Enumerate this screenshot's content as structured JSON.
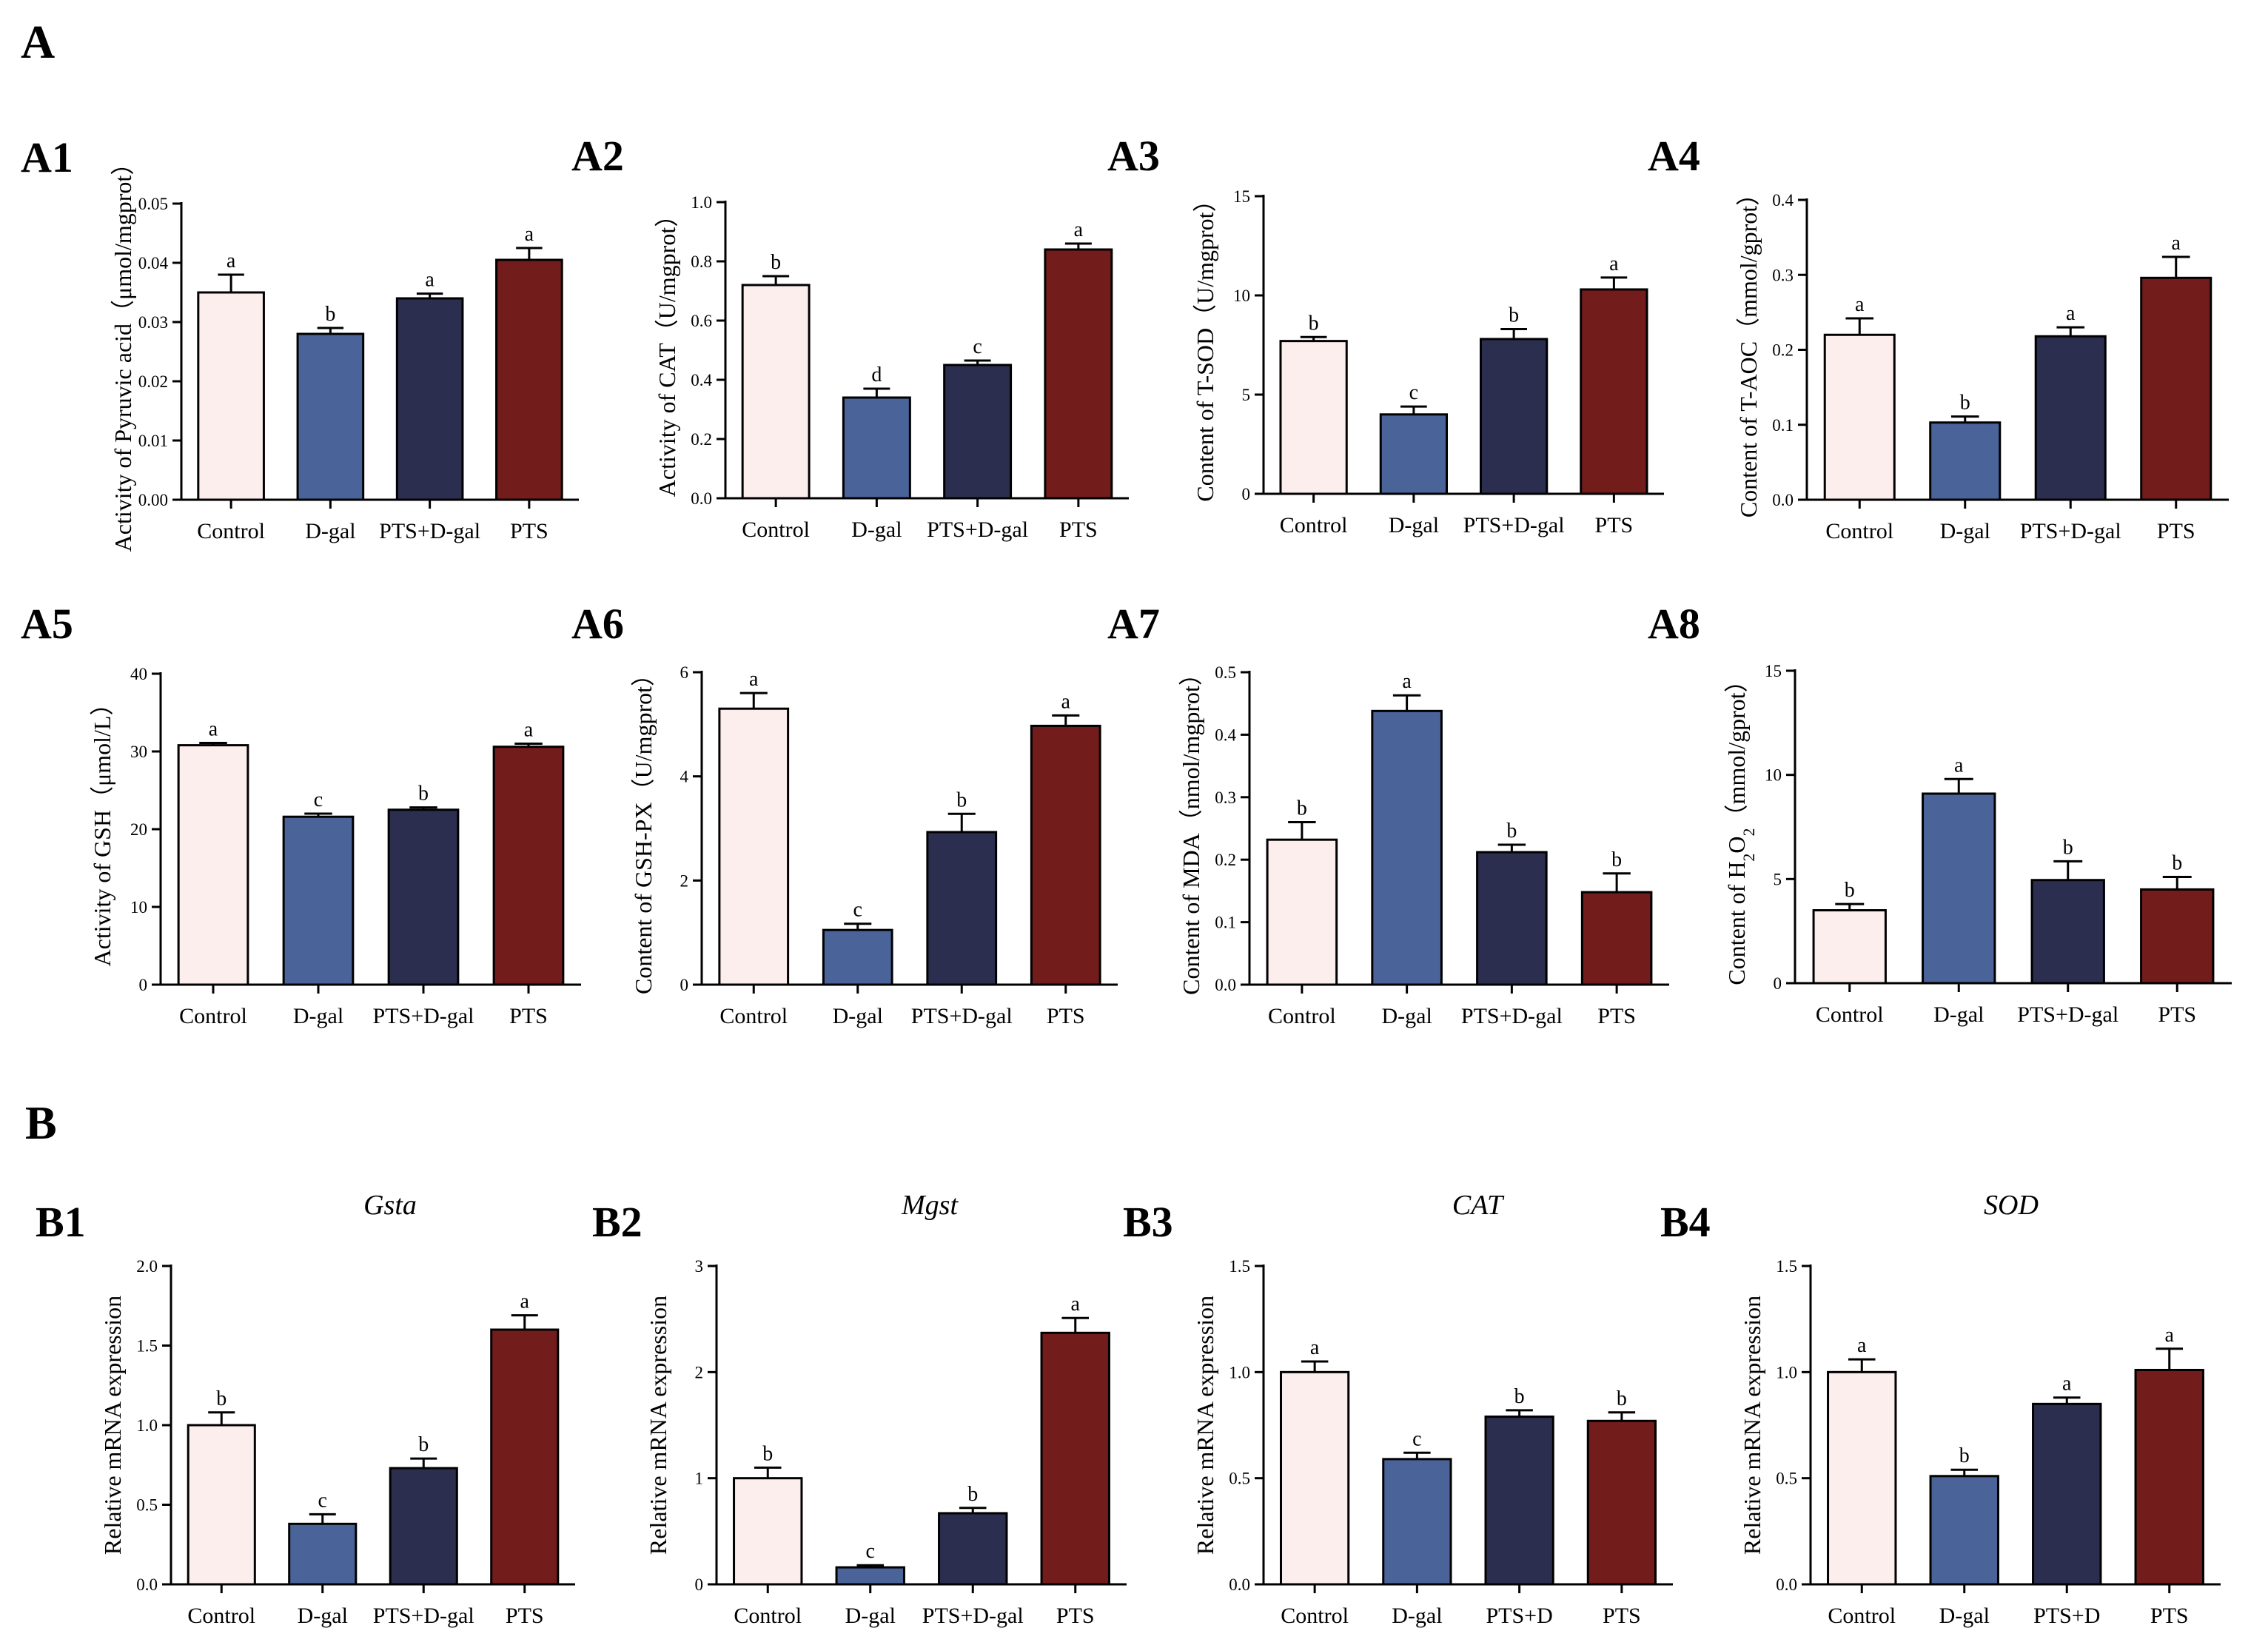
{
  "sections": [
    "A",
    "B"
  ],
  "colors": {
    "Control": "#fdeeee",
    "D-gal": "#4a6499",
    "PTS+D-gal": "#2c2e4f",
    "PTS": "#731c1c"
  },
  "chart_data": [
    {
      "id": "A1",
      "type": "bar",
      "title": "",
      "ylabel": "Activity of Pyruvic acid（μmol/mgprot）",
      "xlabel": "",
      "categories": [
        "Control",
        "D-gal",
        "PTS+D-gal",
        "PTS"
      ],
      "values": [
        0.035,
        0.028,
        0.034,
        0.0405
      ],
      "errors": [
        0.003,
        0.001,
        0.0008,
        0.002
      ],
      "letters": [
        "a",
        "b",
        "a",
        "a"
      ],
      "ylim": [
        0,
        0.05
      ],
      "yticks": [
        "0.00",
        "0.01",
        "0.02",
        "0.03",
        "0.04",
        "0.05"
      ]
    },
    {
      "id": "A2",
      "type": "bar",
      "title": "",
      "ylabel": "Activity of CAT（U/mgprot）",
      "xlabel": "",
      "categories": [
        "Control",
        "D-gal",
        "PTS+D-gal",
        "PTS"
      ],
      "values": [
        0.72,
        0.34,
        0.45,
        0.84
      ],
      "errors": [
        0.03,
        0.03,
        0.015,
        0.02
      ],
      "letters": [
        "b",
        "d",
        "c",
        "a"
      ],
      "ylim": [
        0,
        1.0
      ],
      "yticks": [
        "0.0",
        "0.2",
        "0.4",
        "0.6",
        "0.8",
        "1.0"
      ]
    },
    {
      "id": "A3",
      "type": "bar",
      "title": "",
      "ylabel": "Content of T-SOD（U/mgprot）",
      "xlabel": "",
      "categories": [
        "Control",
        "D-gal",
        "PTS+D-gal",
        "PTS"
      ],
      "values": [
        7.7,
        4.0,
        7.8,
        10.3
      ],
      "errors": [
        0.2,
        0.4,
        0.5,
        0.6
      ],
      "letters": [
        "b",
        "c",
        "b",
        "a"
      ],
      "ylim": [
        0,
        15
      ],
      "yticks": [
        "0",
        "5",
        "10",
        "15"
      ]
    },
    {
      "id": "A4",
      "type": "bar",
      "title": "",
      "ylabel": "Content of T-AOC（mmol/gprot）",
      "xlabel": "",
      "categories": [
        "Control",
        "D-gal",
        "PTS+D-gal",
        "PTS"
      ],
      "values": [
        0.22,
        0.103,
        0.218,
        0.296
      ],
      "errors": [
        0.022,
        0.008,
        0.012,
        0.028
      ],
      "letters": [
        "a",
        "b",
        "a",
        "a"
      ],
      "ylim": [
        0,
        0.4
      ],
      "yticks": [
        "0.0",
        "0.1",
        "0.2",
        "0.3",
        "0.4"
      ]
    },
    {
      "id": "A5",
      "type": "bar",
      "title": "",
      "ylabel": "Activity of GSH（μmol/L）",
      "xlabel": "",
      "categories": [
        "Control",
        "D-gal",
        "PTS+D-gal",
        "PTS"
      ],
      "values": [
        30.8,
        21.6,
        22.5,
        30.6
      ],
      "errors": [
        0.3,
        0.4,
        0.3,
        0.4
      ],
      "letters": [
        "a",
        "c",
        "b",
        "a"
      ],
      "ylim": [
        0,
        40
      ],
      "yticks": [
        "0",
        "10",
        "20",
        "30",
        "40"
      ]
    },
    {
      "id": "A6",
      "type": "bar",
      "title": "",
      "ylabel": "Content of GSH-PX（U/mgprot）",
      "xlabel": "",
      "categories": [
        "Control",
        "D-gal",
        "PTS+D-gal",
        "PTS"
      ],
      "values": [
        5.3,
        1.05,
        2.93,
        4.97
      ],
      "errors": [
        0.3,
        0.12,
        0.35,
        0.2
      ],
      "letters": [
        "a",
        "c",
        "b",
        "a"
      ],
      "ylim": [
        0,
        6
      ],
      "yticks": [
        "0",
        "2",
        "4",
        "6"
      ]
    },
    {
      "id": "A7",
      "type": "bar",
      "title": "",
      "ylabel": "Content of MDA（nmol/mgprot）",
      "xlabel": "",
      "categories": [
        "Control",
        "D-gal",
        "PTS+D-gal",
        "PTS"
      ],
      "values": [
        0.232,
        0.438,
        0.212,
        0.148
      ],
      "errors": [
        0.028,
        0.025,
        0.012,
        0.03
      ],
      "letters": [
        "b",
        "a",
        "b",
        "b"
      ],
      "ylim": [
        0,
        0.5
      ],
      "yticks": [
        "0.0",
        "0.1",
        "0.2",
        "0.3",
        "0.4",
        "0.5"
      ]
    },
    {
      "id": "A8",
      "type": "bar",
      "title": "",
      "ylabel": "Content of H2O2（mmol/gprot）",
      "xlabel": "",
      "categories": [
        "Control",
        "D-gal",
        "PTS+D-gal",
        "PTS"
      ],
      "values": [
        3.5,
        9.1,
        4.95,
        4.5
      ],
      "errors": [
        0.3,
        0.7,
        0.9,
        0.6
      ],
      "letters": [
        "b",
        "a",
        "b",
        "b"
      ],
      "ylim": [
        0,
        15
      ],
      "yticks": [
        "0",
        "5",
        "10",
        "15"
      ]
    },
    {
      "id": "B1",
      "type": "bar",
      "title": "Gsta",
      "ylabel": "Relative mRNA expression",
      "xlabel": "",
      "categories": [
        "Control",
        "D-gal",
        "PTS+D-gal",
        "PTS"
      ],
      "values": [
        1.0,
        0.38,
        0.73,
        1.6
      ],
      "errors": [
        0.08,
        0.06,
        0.06,
        0.09
      ],
      "letters": [
        "b",
        "c",
        "b",
        "a"
      ],
      "ylim": [
        0,
        2.0
      ],
      "yticks": [
        "0.0",
        "0.5",
        "1.0",
        "1.5",
        "2.0"
      ]
    },
    {
      "id": "B2",
      "type": "bar",
      "title": "Mgst",
      "ylabel": "Relative mRNA expression",
      "xlabel": "",
      "categories": [
        "Control",
        "D-gal",
        "PTS+D-gal",
        "PTS"
      ],
      "values": [
        1.0,
        0.16,
        0.67,
        2.37
      ],
      "errors": [
        0.1,
        0.02,
        0.05,
        0.14
      ],
      "letters": [
        "b",
        "c",
        "b",
        "a"
      ],
      "ylim": [
        0,
        3
      ],
      "yticks": [
        "0",
        "1",
        "2",
        "3"
      ]
    },
    {
      "id": "B3",
      "type": "bar",
      "title": "CAT",
      "ylabel": "Relative mRNA expression",
      "xlabel": "",
      "categories": [
        "Control",
        "D-gal",
        "PTS+D",
        "PTS"
      ],
      "values": [
        1.0,
        0.59,
        0.79,
        0.77
      ],
      "errors": [
        0.05,
        0.03,
        0.03,
        0.04
      ],
      "letters": [
        "a",
        "c",
        "b",
        "b"
      ],
      "ylim": [
        0,
        1.5
      ],
      "yticks": [
        "0.0",
        "0.5",
        "1.0",
        "1.5"
      ]
    },
    {
      "id": "B4",
      "type": "bar",
      "title": "SOD",
      "ylabel": "Relative mRNA expression",
      "xlabel": "",
      "categories": [
        "Control",
        "D-gal",
        "PTS+D",
        "PTS"
      ],
      "values": [
        1.0,
        0.51,
        0.85,
        1.01
      ],
      "errors": [
        0.06,
        0.03,
        0.03,
        0.1
      ],
      "letters": [
        "a",
        "b",
        "a",
        "a"
      ],
      "ylim": [
        0,
        1.5
      ],
      "yticks": [
        "0.0",
        "0.5",
        "1.0",
        "1.5"
      ]
    }
  ]
}
